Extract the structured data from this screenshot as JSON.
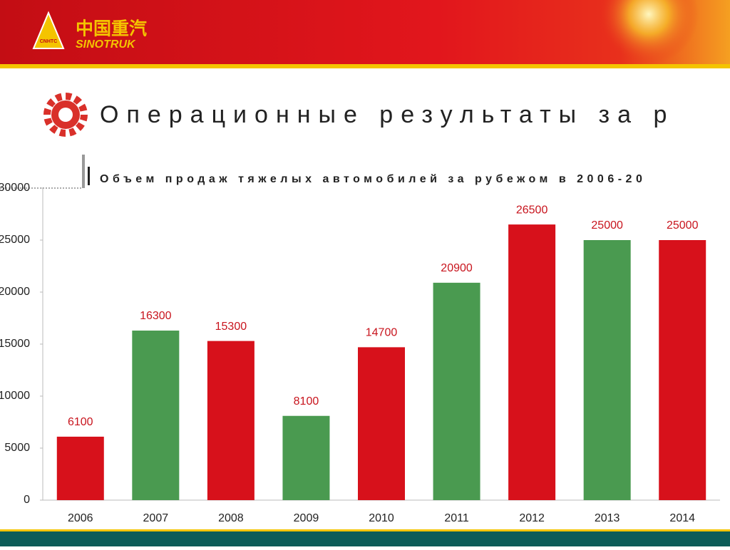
{
  "header": {
    "logo_cn": "中国重汽",
    "logo_en": "SINOTRUK",
    "logo_badge": "CNHTC"
  },
  "slide_title": "Операционные результаты за р",
  "chart_data": {
    "type": "bar",
    "title": "Объем продаж тяжелых автомобилей за рубежом в 2006-20",
    "categories": [
      "2006",
      "2007",
      "2008",
      "2009",
      "2010",
      "2011",
      "2012",
      "2013",
      "2014"
    ],
    "values": [
      6100,
      16300,
      15300,
      8100,
      14700,
      20900,
      26500,
      25000,
      25000
    ],
    "colors": [
      "#d7111b",
      "#4a9a50",
      "#d7111b",
      "#4a9a50",
      "#d7111b",
      "#4a9a50",
      "#d7111b",
      "#4a9a50",
      "#d7111b"
    ],
    "label_color": "#c8141d",
    "ylim": [
      0,
      30000
    ],
    "yticks": [
      0,
      5000,
      10000,
      15000,
      20000,
      25000,
      30000
    ],
    "grid": false
  }
}
